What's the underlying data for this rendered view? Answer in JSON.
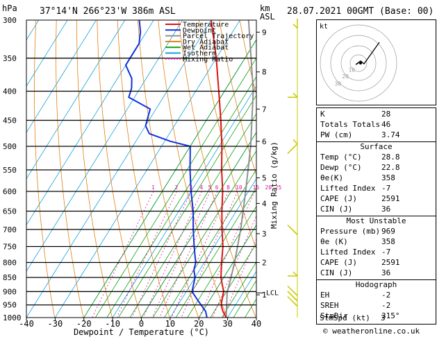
{
  "header": {
    "hpa_label": "hPa",
    "location": "37°14'N  266°23'W  386m  ASL",
    "km_label": "km",
    "asl_label": "ASL",
    "datetime": "28.07.2021  00GMT  (Base: 00)"
  },
  "chart_data": {
    "type": "skew-t",
    "xlabel": "Dewpoint / Temperature (°C)",
    "ylabel": "hPa",
    "right_axis_label": "Mixing Ratio (g/kg)",
    "xlim": [
      -40,
      40
    ],
    "x_ticks": [
      -40,
      -30,
      -20,
      -10,
      0,
      10,
      20,
      30,
      40
    ],
    "pressure_levels": [
      300,
      350,
      400,
      450,
      500,
      550,
      600,
      650,
      700,
      750,
      800,
      850,
      900,
      950,
      1000
    ],
    "km_ticks": [
      {
        "km": "1",
        "p": 912
      },
      {
        "km": "2",
        "p": 800
      },
      {
        "km": "3",
        "p": 712
      },
      {
        "km": "4",
        "p": 630
      },
      {
        "km": "5",
        "p": 568
      },
      {
        "km": "6",
        "p": 490
      },
      {
        "km": "7",
        "p": 430
      },
      {
        "km": "8",
        "p": 370
      },
      {
        "km": "9",
        "p": 315
      }
    ],
    "lcl_label": "LCL",
    "lcl_pressure": 905,
    "mixing_ratio_labels": [
      "1",
      "2",
      "3",
      "4",
      "5",
      "6",
      "8",
      "10",
      "15",
      "20",
      "25"
    ],
    "legend": [
      "Temperature",
      "Dewpoint",
      "Parcel Trajectory",
      "Dry Adiabat",
      "Wet Adiabat",
      "Isotherm",
      "Mixing Ratio"
    ],
    "temperature": [
      [
        1000,
        29.5
      ],
      [
        975,
        27
      ],
      [
        950,
        25
      ],
      [
        925,
        24
      ],
      [
        900,
        23
      ],
      [
        875,
        21
      ],
      [
        850,
        19
      ],
      [
        800,
        16
      ],
      [
        750,
        13
      ],
      [
        700,
        9
      ],
      [
        650,
        5
      ],
      [
        600,
        1
      ],
      [
        550,
        -4
      ],
      [
        500,
        -9
      ],
      [
        450,
        -15
      ],
      [
        400,
        -22
      ],
      [
        350,
        -30
      ],
      [
        300,
        -40
      ]
    ],
    "dewpoint": [
      [
        1000,
        22.8
      ],
      [
        975,
        21
      ],
      [
        950,
        18
      ],
      [
        925,
        15
      ],
      [
        900,
        12
      ],
      [
        875,
        11
      ],
      [
        850,
        10
      ],
      [
        825,
        8
      ],
      [
        800,
        7
      ],
      [
        775,
        5
      ],
      [
        750,
        3
      ],
      [
        700,
        -1
      ],
      [
        650,
        -5
      ],
      [
        600,
        -10
      ],
      [
        550,
        -15
      ],
      [
        500,
        -20
      ],
      [
        490,
        -28
      ],
      [
        475,
        -37
      ],
      [
        460,
        -40
      ],
      [
        445,
        -41
      ],
      [
        430,
        -42
      ],
      [
        410,
        -52
      ],
      [
        395,
        -53
      ],
      [
        380,
        -55
      ],
      [
        360,
        -60
      ],
      [
        345,
        -60
      ],
      [
        330,
        -60
      ],
      [
        315,
        -62
      ],
      [
        300,
        -65
      ]
    ],
    "parcel": [
      [
        1000,
        29.5
      ],
      [
        905,
        24.5
      ],
      [
        850,
        22.5
      ],
      [
        800,
        20.5
      ],
      [
        700,
        15.5
      ],
      [
        600,
        9
      ],
      [
        500,
        1
      ],
      [
        400,
        -10
      ],
      [
        300,
        -27
      ]
    ]
  },
  "colors": {
    "temperature": "#e01010",
    "dewpoint": "#1030e0",
    "parcel": "#909090",
    "dry_adiabat": "#e08010",
    "wet_adiabat": "#10a010",
    "isotherm": "#10a0e0",
    "mixing_ratio": "#e010a0",
    "wind": "#c8c800"
  },
  "hodograph": {
    "label": "kt",
    "ring_labels": [
      "10",
      "20",
      "30"
    ]
  },
  "indices": [
    {
      "k": "K",
      "v": "28"
    },
    {
      "k": "Totals Totals",
      "v": "46"
    },
    {
      "k": "PW (cm)",
      "v": "3.74"
    }
  ],
  "surface": {
    "title": "Surface",
    "rows": [
      {
        "k": "Temp (°C)",
        "v": "28.8"
      },
      {
        "k": "Dewp (°C)",
        "v": "22.8"
      },
      {
        "k": "θe(K)",
        "v": "358"
      },
      {
        "k": "Lifted Index",
        "v": "-7"
      },
      {
        "k": "CAPE (J)",
        "v": "2591"
      },
      {
        "k": "CIN (J)",
        "v": "36"
      }
    ]
  },
  "most_unstable": {
    "title": "Most Unstable",
    "rows": [
      {
        "k": "Pressure (mb)",
        "v": "969"
      },
      {
        "k": "θe (K)",
        "v": "358"
      },
      {
        "k": "Lifted Index",
        "v": "-7"
      },
      {
        "k": "CAPE (J)",
        "v": "2591"
      },
      {
        "k": "CIN (J)",
        "v": "36"
      }
    ]
  },
  "hodograph_box": {
    "title": "Hodograph",
    "rows": [
      {
        "k": "EH",
        "v": "-2"
      },
      {
        "k": "SREH",
        "v": "-2"
      },
      {
        "k": "StmDir",
        "v": "315°"
      },
      {
        "k": "StmSpd (kt)",
        "v": "3"
      }
    ]
  },
  "footer": "© weatheronline.co.uk"
}
